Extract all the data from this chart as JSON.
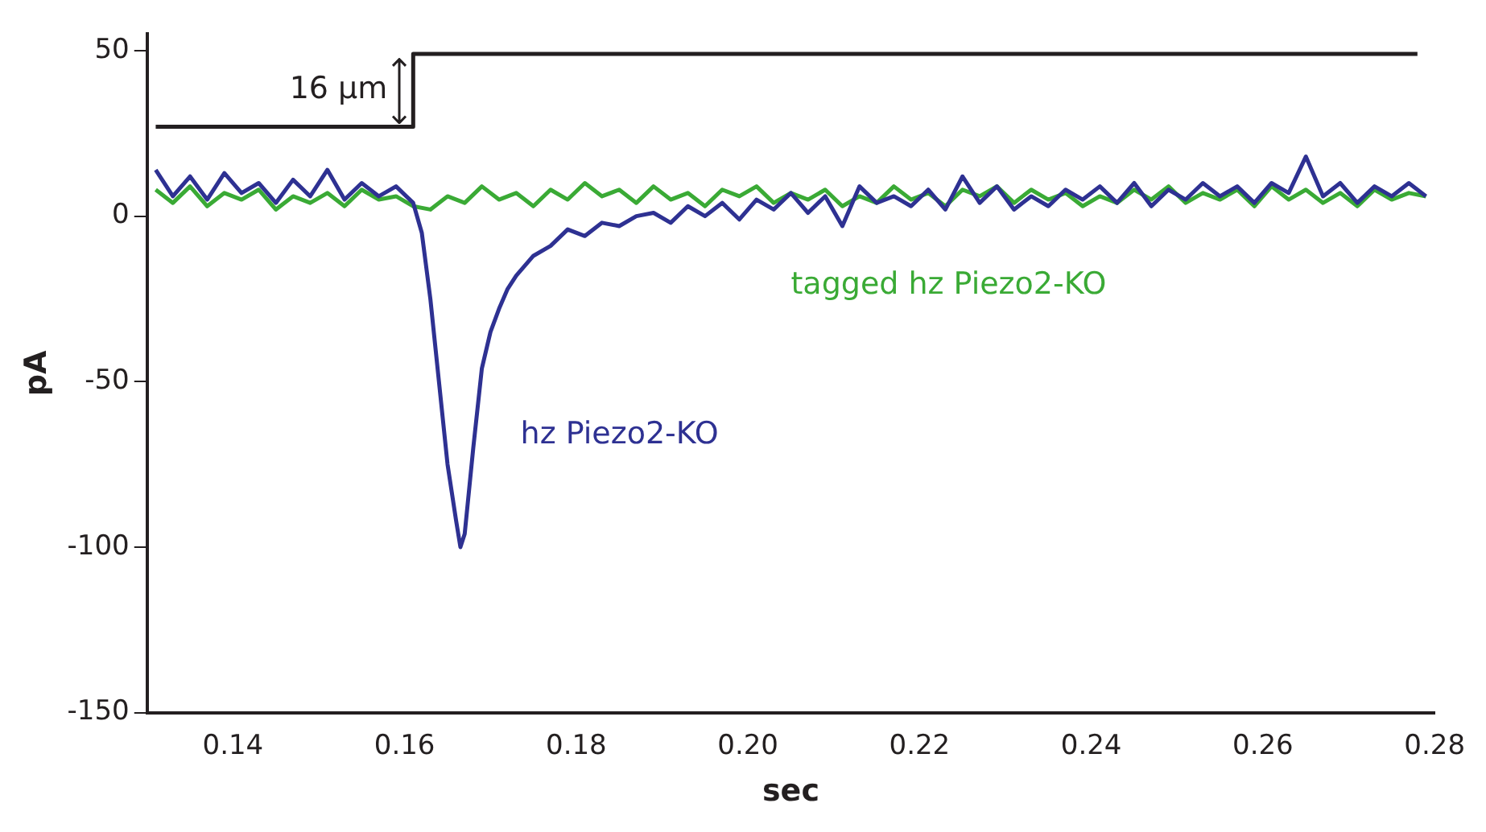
{
  "chart_data": {
    "type": "line",
    "xlabel": "sec",
    "ylabel": "pA",
    "annotations": [
      "16 µm"
    ],
    "xlim": [
      0.13,
      0.28
    ],
    "ylim": [
      -150,
      55
    ],
    "xticks": [
      0.14,
      0.16,
      0.18,
      {
        "value": 0.2,
        "label": "0.20"
      },
      0.22,
      0.24,
      0.26,
      0.28
    ],
    "yticks": [
      -150,
      -100,
      -50,
      0,
      50
    ],
    "grid": false,
    "legend": false,
    "marker": "none",
    "line_style": "solid",
    "series": [
      {
        "name": "hz Piezo2-KO",
        "color": "#2e3192",
        "x": [
          0.131,
          0.133,
          0.135,
          0.137,
          0.139,
          0.141,
          0.143,
          0.145,
          0.147,
          0.149,
          0.151,
          0.153,
          0.155,
          0.157,
          0.159,
          0.161,
          0.162,
          0.163,
          0.164,
          0.165,
          0.166,
          0.1665,
          0.167,
          0.168,
          0.169,
          0.17,
          0.171,
          0.172,
          0.173,
          0.175,
          0.177,
          0.179,
          0.181,
          0.183,
          0.185,
          0.187,
          0.189,
          0.191,
          0.193,
          0.195,
          0.197,
          0.199,
          0.201,
          0.203,
          0.205,
          0.207,
          0.209,
          0.211,
          0.213,
          0.215,
          0.217,
          0.219,
          0.221,
          0.223,
          0.225,
          0.227,
          0.229,
          0.231,
          0.233,
          0.235,
          0.237,
          0.239,
          0.241,
          0.243,
          0.245,
          0.247,
          0.249,
          0.251,
          0.253,
          0.255,
          0.257,
          0.259,
          0.261,
          0.263,
          0.265,
          0.267,
          0.269,
          0.271,
          0.273,
          0.275,
          0.277,
          0.279
        ],
        "values": [
          14,
          6,
          12,
          5,
          13,
          7,
          10,
          4,
          11,
          6,
          14,
          5,
          10,
          6,
          9,
          4,
          -5,
          -25,
          -50,
          -75,
          -92,
          -100,
          -96,
          -70,
          -46,
          -35,
          -28,
          -22,
          -18,
          -12,
          -9,
          -4,
          -6,
          -2,
          -3,
          0,
          1,
          -2,
          3,
          0,
          4,
          -1,
          5,
          2,
          7,
          1,
          6,
          -3,
          9,
          4,
          6,
          3,
          8,
          2,
          12,
          4,
          9,
          2,
          6,
          3,
          8,
          5,
          9,
          4,
          10,
          3,
          8,
          5,
          10,
          6,
          9,
          4,
          10,
          7,
          18,
          6,
          10,
          4,
          9,
          6,
          10,
          6
        ]
      },
      {
        "name": "tagged hz Piezo2-KO",
        "color": "#3aaa35",
        "x": [
          0.131,
          0.133,
          0.135,
          0.137,
          0.139,
          0.141,
          0.143,
          0.145,
          0.147,
          0.149,
          0.151,
          0.153,
          0.155,
          0.157,
          0.159,
          0.161,
          0.163,
          0.165,
          0.167,
          0.169,
          0.171,
          0.173,
          0.175,
          0.177,
          0.179,
          0.181,
          0.183,
          0.185,
          0.187,
          0.189,
          0.191,
          0.193,
          0.195,
          0.197,
          0.199,
          0.201,
          0.203,
          0.205,
          0.207,
          0.209,
          0.211,
          0.213,
          0.215,
          0.217,
          0.219,
          0.221,
          0.223,
          0.225,
          0.227,
          0.229,
          0.231,
          0.233,
          0.235,
          0.237,
          0.239,
          0.241,
          0.243,
          0.245,
          0.247,
          0.249,
          0.251,
          0.253,
          0.255,
          0.257,
          0.259,
          0.261,
          0.263,
          0.265,
          0.267,
          0.269,
          0.271,
          0.273,
          0.275,
          0.277,
          0.279
        ],
        "values": [
          8,
          4,
          9,
          3,
          7,
          5,
          8,
          2,
          6,
          4,
          7,
          3,
          8,
          5,
          6,
          3,
          2,
          6,
          4,
          9,
          5,
          7,
          3,
          8,
          5,
          10,
          6,
          8,
          4,
          9,
          5,
          7,
          3,
          8,
          6,
          9,
          4,
          7,
          5,
          8,
          3,
          6,
          4,
          9,
          5,
          7,
          3,
          8,
          6,
          9,
          4,
          8,
          5,
          7,
          3,
          6,
          4,
          8,
          5,
          9,
          4,
          7,
          5,
          8,
          3,
          9,
          5,
          8,
          4,
          7,
          3,
          8,
          5,
          7,
          6
        ]
      },
      {
        "color": "#231f20",
        "x": [
          0.131,
          0.161,
          0.161,
          0.278
        ],
        "values": [
          27,
          27,
          49,
          49
        ]
      }
    ]
  }
}
